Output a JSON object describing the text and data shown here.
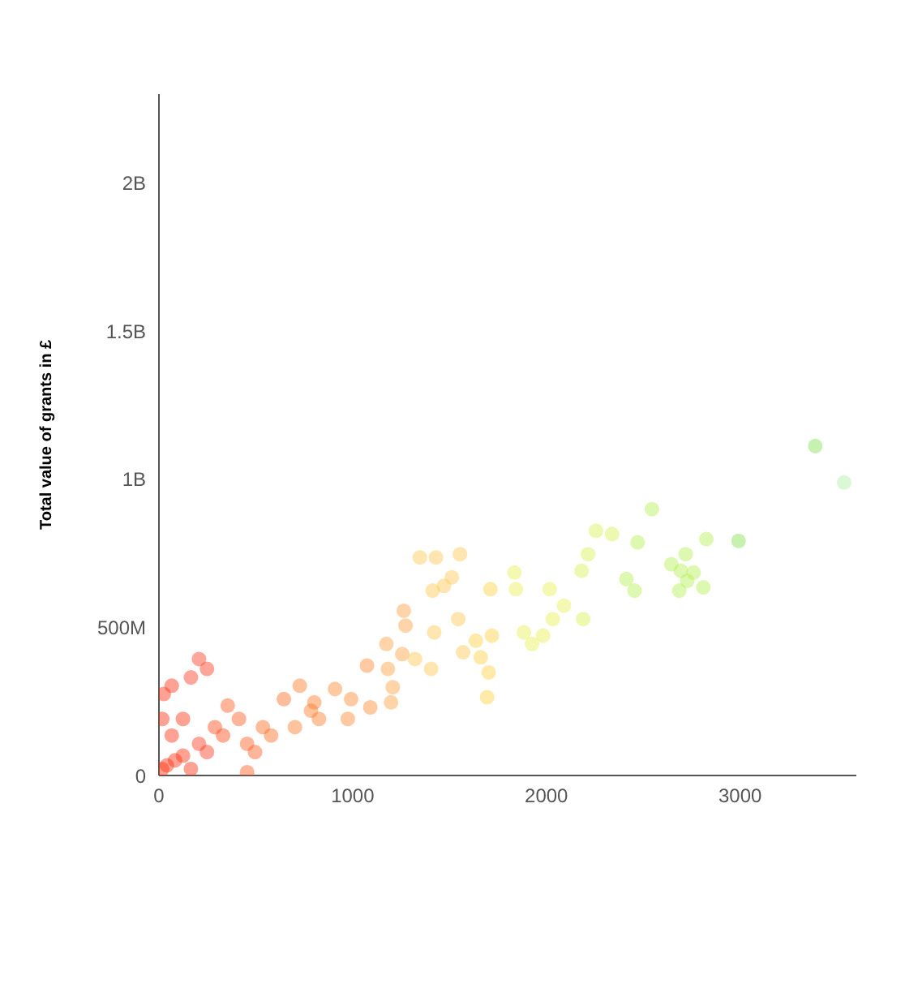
{
  "chart_data": {
    "type": "scatter",
    "ylabel": "Total value of grants in £",
    "x": [
      3388,
      3537,
      2545,
      2826,
      2992,
      2719,
      2471,
      2339,
      2256,
      2215,
      2182,
      2413,
      2455,
      2645,
      2694,
      2727,
      2760,
      2810,
      2686,
      1835,
      1843,
      2017,
      2091,
      2033,
      1983,
      2190,
      1884,
      1719,
      1926,
      1512,
      1430,
      1413,
      1347,
      1545,
      1636,
      1661,
      1702,
      1570,
      1694,
      1264,
      1273,
      1421,
      1174,
      1256,
      1322,
      1405,
      1207,
      1091,
      1198,
      1074,
      1554,
      1471,
      1711,
      1182,
      992,
      909,
      802,
      727,
      645,
      413,
      355,
      207,
      248,
      165,
      66,
      124,
      289,
      537,
      785,
      975,
      455,
      248,
      83,
      17,
      41,
      124,
      207,
      331,
      579,
      702,
      826,
      496,
      165,
      455,
      66,
      17,
      25
    ],
    "values": [
      1112000000.0,
      989000000.0,
      899000000.0,
      798000000.0,
      792000000.0,
      747000000.0,
      787000000.0,
      815000000.0,
      826000000.0,
      747000000.0,
      691000000.0,
      663000000.0,
      624000000.0,
      713000000.0,
      691000000.0,
      657000000.0,
      685000000.0,
      635000000.0,
      624000000.0,
      685000000.0,
      629000000.0,
      629000000.0,
      573000000.0,
      528000000.0,
      472000000.0,
      528000000.0,
      483000000.0,
      472000000.0,
      444000000.0,
      669000000.0,
      736000000.0,
      624000000.0,
      736000000.0,
      528000000.0,
      455000000.0,
      399000000.0,
      348000000.0,
      416000000.0,
      264000000.0,
      556000000.0,
      506000000.0,
      483000000.0,
      444000000.0,
      410000000.0,
      393000000.0,
      360000000.0,
      298000000.0,
      230000000.0,
      247000000.0,
      371000000.0,
      747000000.0,
      640000000.0,
      629000000.0,
      360000000.0,
      258000000.0,
      292000000.0,
      247000000.0,
      303000000.0,
      258000000.0,
      191000000.0,
      236000000.0,
      393000000.0,
      360000000.0,
      331000000.0,
      303000000.0,
      191000000.0,
      163000000.0,
      163000000.0,
      219000000.0,
      191000000.0,
      107000000.0,
      79000000.0,
      51000000.0,
      22000000.0,
      34000000.0,
      67000000.0,
      107000000.0,
      135000000.0,
      135000000.0,
      163000000.0,
      191000000.0,
      79000000.0,
      22000000.0,
      11000000.0,
      135000000.0,
      191000000.0,
      275000000.0
    ],
    "colors": [
      "#80e050",
      "#b0f0a0",
      "#b4f050",
      "#b4f050",
      "#80e050",
      "#b4f050",
      "#b4f050",
      "#d8f050",
      "#d8f050",
      "#d8f050",
      "#d8f050",
      "#b4f050",
      "#b4f050",
      "#b4f050",
      "#b4f050",
      "#b4f050",
      "#b4f050",
      "#b4f050",
      "#b4f050",
      "#e6f050",
      "#e6f050",
      "#e6f050",
      "#e6f050",
      "#e6f050",
      "#e6f050",
      "#d8f050",
      "#e6f050",
      "#ffd040",
      "#e6f050",
      "#ffc850",
      "#ffc850",
      "#ffc850",
      "#ffc850",
      "#ffc850",
      "#ffd040",
      "#ffd040",
      "#ffd040",
      "#ffc850",
      "#ffd040",
      "#ffa040",
      "#ffa040",
      "#ffc850",
      "#ffa040",
      "#ffa040",
      "#ffc850",
      "#ffc850",
      "#ffa040",
      "#ff8a30",
      "#ffa040",
      "#ff8a30",
      "#ffc850",
      "#ffc850",
      "#ffd040",
      "#ffa040",
      "#ff8a30",
      "#ff8a30",
      "#ff7a28",
      "#ff7a28",
      "#ff6a20",
      "#ff5a1e",
      "#ff5a1e",
      "#ff3a20",
      "#ff3a20",
      "#ff3a20",
      "#ff3010",
      "#ff3010",
      "#ff4a18",
      "#ff6a20",
      "#ff7a28",
      "#ff8a30",
      "#ff5a1e",
      "#ff3a20",
      "#ff3010",
      "#ff3010",
      "#ff3010",
      "#ff3010",
      "#ff3a20",
      "#ff4a18",
      "#ff6a20",
      "#ff7a28",
      "#ff7a28",
      "#ff5a1e",
      "#ff3010",
      "#ff5a1e",
      "#ff3010",
      "#ff3010",
      "#ff3010"
    ],
    "xlim": [
      0,
      3600
    ],
    "xticks": [
      0,
      1000,
      2000,
      3000
    ],
    "ylim": [
      0,
      2300000000.0
    ],
    "yticks": [
      0,
      {
        "value": 500000000.0,
        "label": "500M"
      },
      {
        "value": 1000000000.0,
        "label": "1B"
      },
      {
        "value": 1500000000.0,
        "label": "1.5B"
      },
      {
        "value": 2000000000.0,
        "label": "2B"
      }
    ],
    "grid": false,
    "marker": "circle"
  }
}
